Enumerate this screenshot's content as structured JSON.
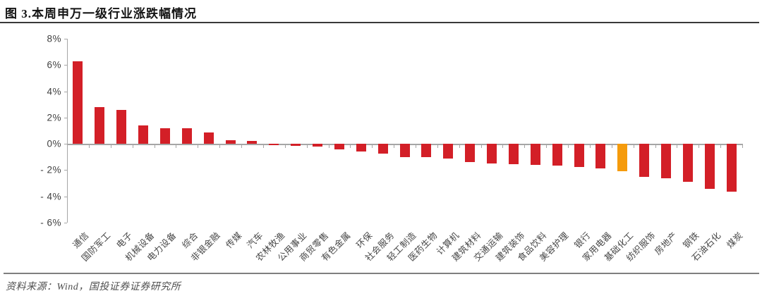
{
  "figure": {
    "title": "图 3.本周申万一级行业涨跌幅情况",
    "source_note": "资料来源：Wind，国投证券证券研究所"
  },
  "chart_data": {
    "type": "bar",
    "title": "本周申万一级行业涨跌幅情况",
    "categories": [
      "通信",
      "国防军工",
      "电子",
      "机械设备",
      "电力设备",
      "综合",
      "非银金融",
      "传媒",
      "汽车",
      "农林牧渔",
      "公用事业",
      "商贸零售",
      "有色金属",
      "环保",
      "社会服务",
      "轻工制造",
      "医药生物",
      "计算机",
      "建筑材料",
      "交通运输",
      "建筑装饰",
      "食品饮料",
      "美容护理",
      "银行",
      "家用电器",
      "基础化工",
      "纺织服饰",
      "房地产",
      "钢铁",
      "石油石化",
      "煤炭"
    ],
    "values": [
      6.3,
      2.8,
      2.6,
      1.4,
      1.2,
      1.2,
      0.85,
      0.3,
      0.2,
      -0.1,
      -0.15,
      -0.2,
      -0.45,
      -0.6,
      -0.75,
      -1.0,
      -1.0,
      -1.1,
      -1.4,
      -1.5,
      -1.55,
      -1.6,
      -1.65,
      -1.75,
      -1.9,
      -2.1,
      -2.5,
      -2.6,
      -2.9,
      -3.45,
      -3.65
    ],
    "unit": "%",
    "xlabel": "",
    "ylabel": "",
    "ylim": [
      -6,
      8
    ],
    "ytick_step": 2,
    "ytick_labels": [
      "8%",
      "6%",
      "4%",
      "2%",
      "0%",
      "- 2%",
      "- 4%",
      "- 6%"
    ],
    "grid": false,
    "legend_position": "none",
    "highlight_category": "基础化工",
    "bar_color": "#d31f27",
    "highlight_color": "#f59b0c",
    "axis_color": "#a6a6a6"
  }
}
